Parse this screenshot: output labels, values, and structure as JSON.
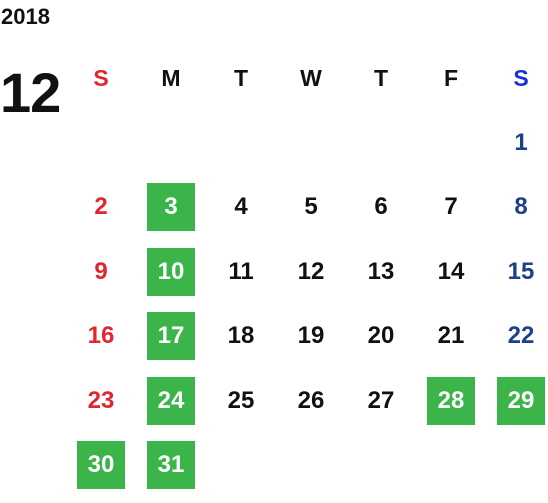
{
  "year": "2018",
  "month": "12",
  "weekdays": [
    "S",
    "M",
    "T",
    "W",
    "T",
    "F",
    "S"
  ],
  "colors": {
    "sunday": "#e3262e",
    "saturday_header": "#1a2fd6",
    "saturday": "#1e3f8a",
    "highlight_bg": "#3bb54a",
    "highlight_text": "#ffffff",
    "text": "#111111"
  },
  "first_weekday_index": 6,
  "highlighted_days": [
    "3",
    "10",
    "17",
    "24",
    "28",
    "29",
    "30",
    "31"
  ],
  "days": [
    "1",
    "2",
    "3",
    "4",
    "5",
    "6",
    "7",
    "8",
    "9",
    "10",
    "11",
    "12",
    "13",
    "14",
    "15",
    "16",
    "17",
    "18",
    "19",
    "20",
    "21",
    "22",
    "23",
    "24",
    "25",
    "26",
    "27",
    "28",
    "29",
    "30",
    "31"
  ]
}
